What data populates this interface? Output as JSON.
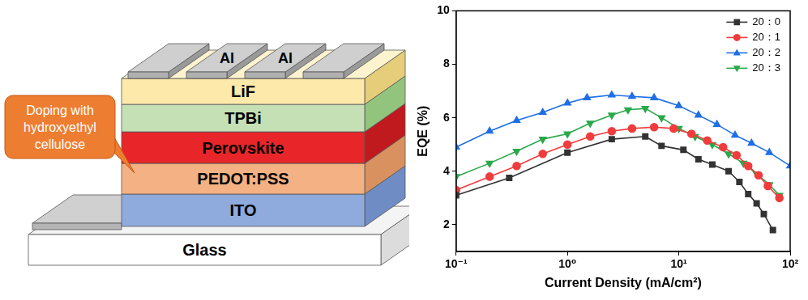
{
  "diagram": {
    "callout": "Doping with hydroxyethyl cellulose",
    "electrodes": [
      "Al",
      "Al"
    ],
    "layers": [
      "LiF",
      "TPBi",
      "Perovskite",
      "PEDOT:PSS",
      "ITO",
      "Glass"
    ]
  },
  "chart_data": {
    "type": "line",
    "x_label": "Current Density (mA/cm²)",
    "y_label": "EQE (%)",
    "log": "x",
    "grid": false,
    "legend": "upper right",
    "xlim": [
      0.1,
      100
    ],
    "xticks": [
      {
        "value": 0.1,
        "label": "10⁻¹"
      },
      {
        "value": 1,
        "label": "10⁰"
      },
      {
        "value": 10,
        "label": "10¹"
      },
      {
        "value": 100,
        "label": "10²"
      }
    ],
    "ylim": [
      1,
      10
    ],
    "yticks": [
      2,
      4,
      6,
      8,
      10
    ],
    "series": [
      {
        "name": "20：0",
        "color": "#333333",
        "marker": "square",
        "line_style": "solid",
        "x": [
          0.1,
          0.3,
          1,
          2.5,
          5,
          7,
          11,
          15,
          20,
          28,
          35,
          42,
          50,
          58,
          70
        ],
        "values": [
          3.1,
          3.75,
          4.7,
          5.2,
          5.3,
          4.95,
          4.8,
          4.45,
          4.25,
          4.0,
          3.6,
          3.15,
          2.8,
          2.4,
          1.8
        ]
      },
      {
        "name": "20：1",
        "color": "#f03c3c",
        "marker": "circle",
        "line_style": "solid",
        "x": [
          0.1,
          0.2,
          0.35,
          0.6,
          1,
          1.6,
          2.5,
          3.8,
          6,
          9,
          13,
          18,
          25,
          33,
          42,
          52,
          63,
          80
        ],
        "values": [
          3.3,
          3.8,
          4.2,
          4.65,
          5.0,
          5.3,
          5.5,
          5.6,
          5.65,
          5.6,
          5.4,
          5.15,
          4.9,
          4.6,
          4.2,
          3.85,
          3.45,
          3.0
        ]
      },
      {
        "name": "20：2",
        "color": "#1f6fe5",
        "marker": "triangle",
        "line_style": "solid",
        "x": [
          0.1,
          0.2,
          0.35,
          0.6,
          1,
          1.5,
          2.5,
          3.8,
          6,
          10,
          15,
          22,
          32,
          45,
          65,
          100
        ],
        "values": [
          4.9,
          5.5,
          5.9,
          6.2,
          6.55,
          6.75,
          6.85,
          6.8,
          6.75,
          6.45,
          6.1,
          5.75,
          5.35,
          5.05,
          4.7,
          4.2
        ]
      },
      {
        "name": "20：3",
        "color": "#2aa84a",
        "marker": "triangle_down",
        "line_style": "solid",
        "x": [
          0.1,
          0.2,
          0.35,
          0.6,
          1,
          1.6,
          2.5,
          3.5,
          5,
          7,
          10,
          14,
          20,
          28,
          38,
          50,
          65,
          80
        ],
        "values": [
          3.8,
          4.3,
          4.75,
          5.2,
          5.4,
          5.8,
          6.1,
          6.3,
          6.35,
          6.0,
          5.6,
          5.3,
          5.0,
          4.65,
          4.3,
          3.9,
          3.5,
          3.1
        ]
      }
    ]
  }
}
